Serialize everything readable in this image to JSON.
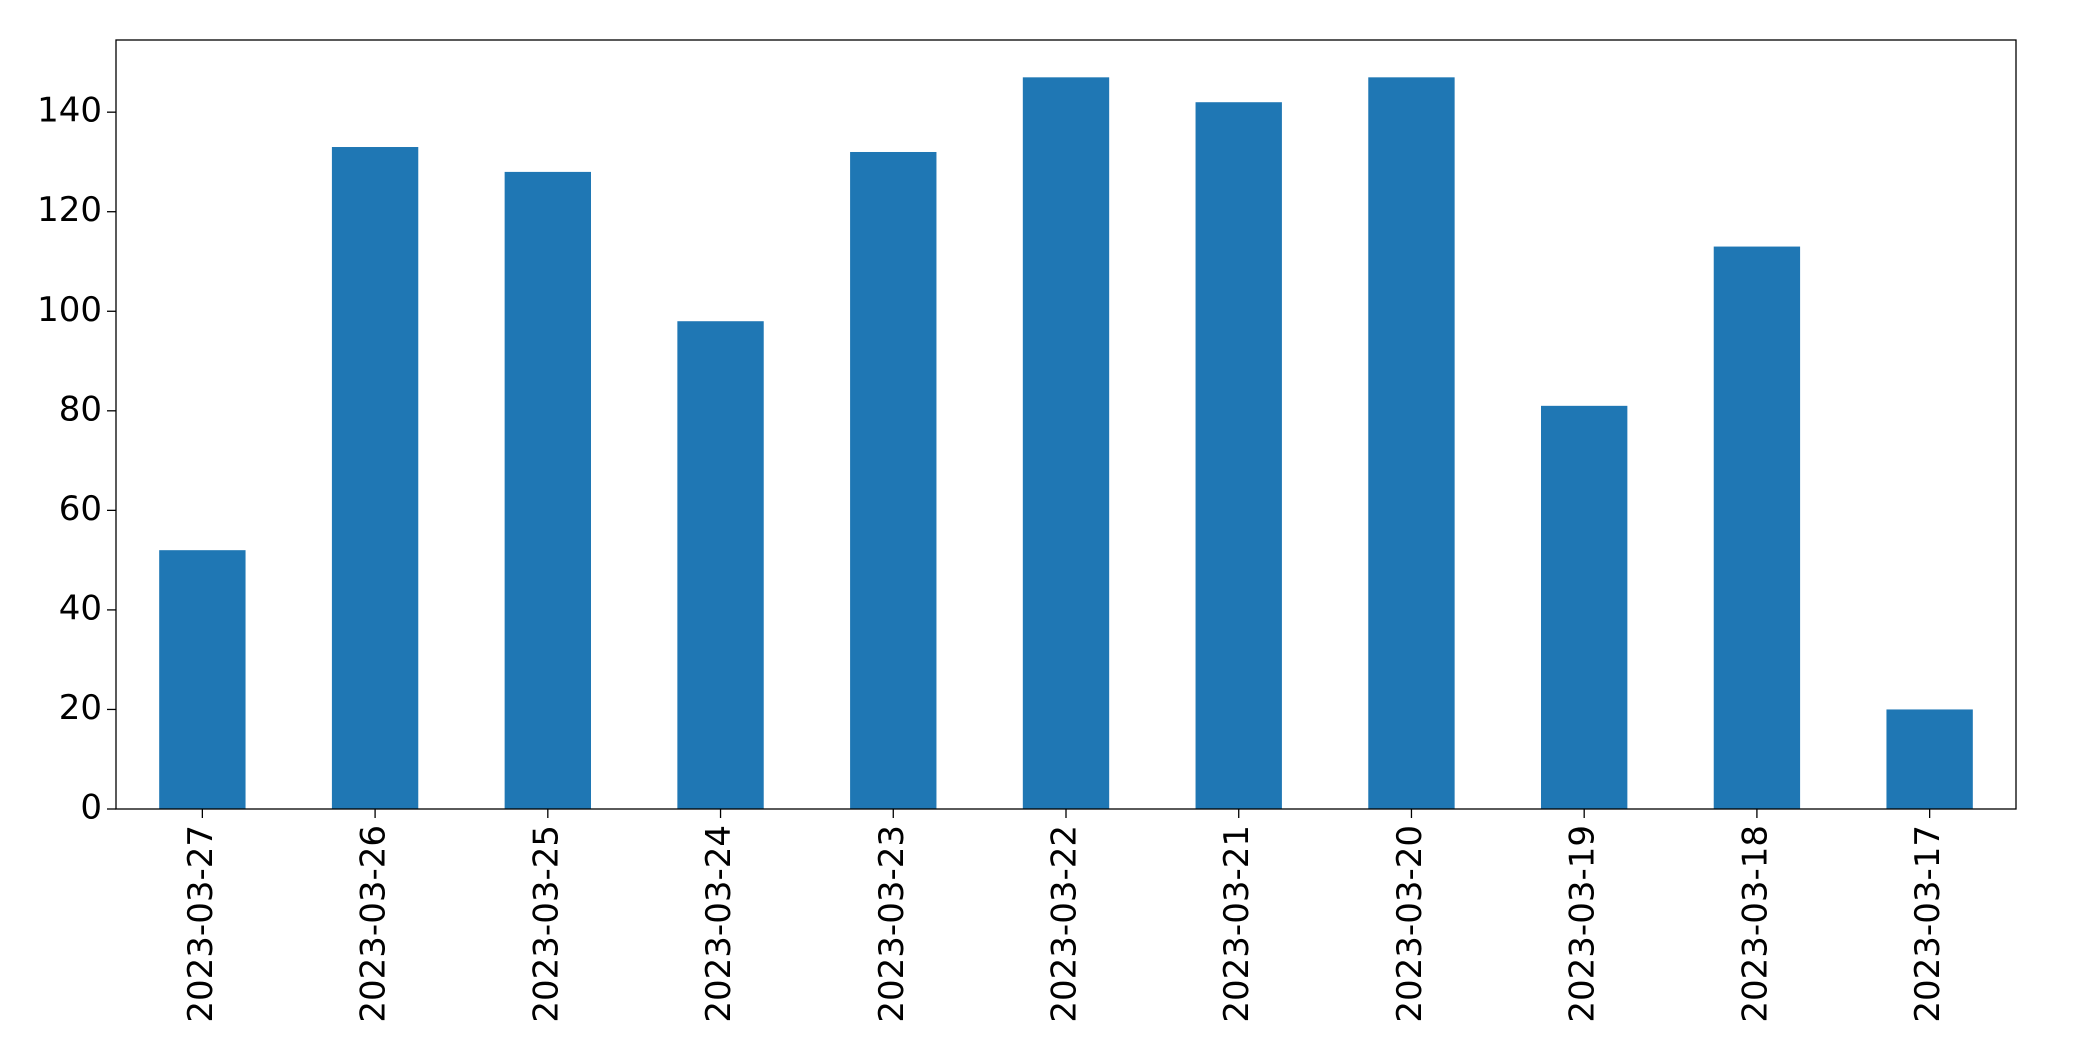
{
  "chart_data": {
    "type": "bar",
    "categories": [
      "2023-03-27",
      "2023-03-26",
      "2023-03-25",
      "2023-03-24",
      "2023-03-23",
      "2023-03-22",
      "2023-03-21",
      "2023-03-20",
      "2023-03-19",
      "2023-03-18",
      "2023-03-17"
    ],
    "values": [
      52,
      133,
      128,
      98,
      132,
      147,
      142,
      147,
      81,
      113,
      20
    ],
    "color": "#1f77b4",
    "ylim": [
      0,
      154.5
    ],
    "yticks": [
      0,
      20,
      40,
      60,
      80,
      100,
      120,
      140
    ],
    "grid": false
  }
}
